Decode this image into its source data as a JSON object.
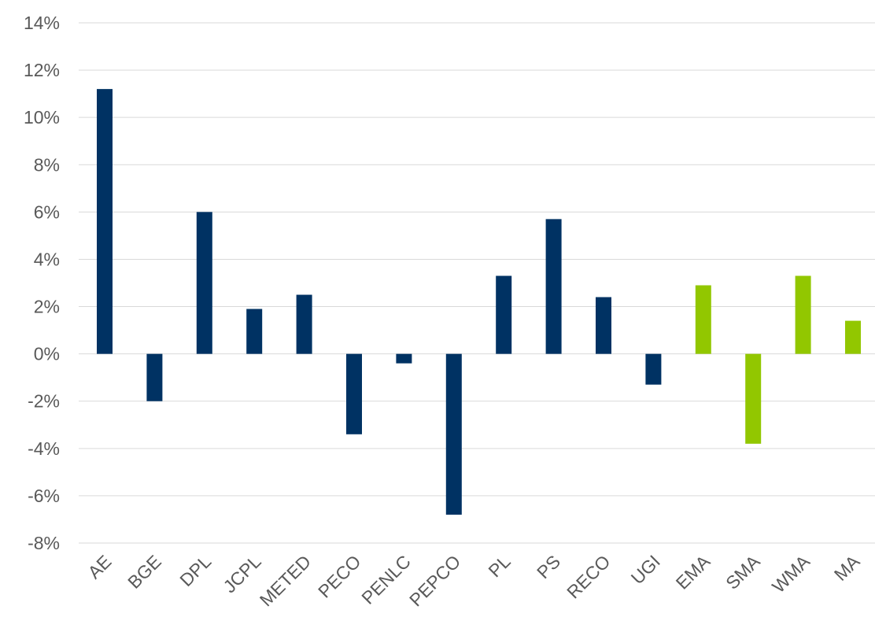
{
  "chart_data": {
    "type": "bar",
    "title": "",
    "xlabel": "",
    "ylabel": "",
    "categories": [
      "AE",
      "BGE",
      "DPL",
      "JCPL",
      "METED",
      "PECO",
      "PENLC",
      "PEPCO",
      "PL",
      "PS",
      "RECO",
      "UGI",
      "EMA",
      "SMA",
      "WMA",
      "MA"
    ],
    "values": [
      11.2,
      -2.0,
      6.0,
      1.9,
      2.5,
      -3.4,
      -0.4,
      -6.8,
      3.3,
      5.7,
      2.4,
      -1.3,
      2.9,
      -3.8,
      3.3,
      1.4
    ],
    "bar_colors": [
      "#003263",
      "#003263",
      "#003263",
      "#003263",
      "#003263",
      "#003263",
      "#003263",
      "#003263",
      "#003263",
      "#003263",
      "#003263",
      "#003263",
      "#92C700",
      "#92C700",
      "#92C700",
      "#92C700"
    ],
    "ylim": [
      -8,
      14
    ],
    "yticks": [
      14,
      12,
      10,
      8,
      6,
      4,
      2,
      0,
      -2,
      -4,
      -6,
      -8
    ],
    "ytick_labels": [
      "14%",
      "12%",
      "10%",
      "8%",
      "6%",
      "4%",
      "2%",
      "0%",
      "-2%",
      "-4%",
      "-6%",
      "-8%"
    ],
    "grid": true,
    "legend": "none",
    "colors": {
      "gridline": "#d9d9d9",
      "axis_text": "#595959",
      "zero_line": "#d9d9d9"
    }
  }
}
